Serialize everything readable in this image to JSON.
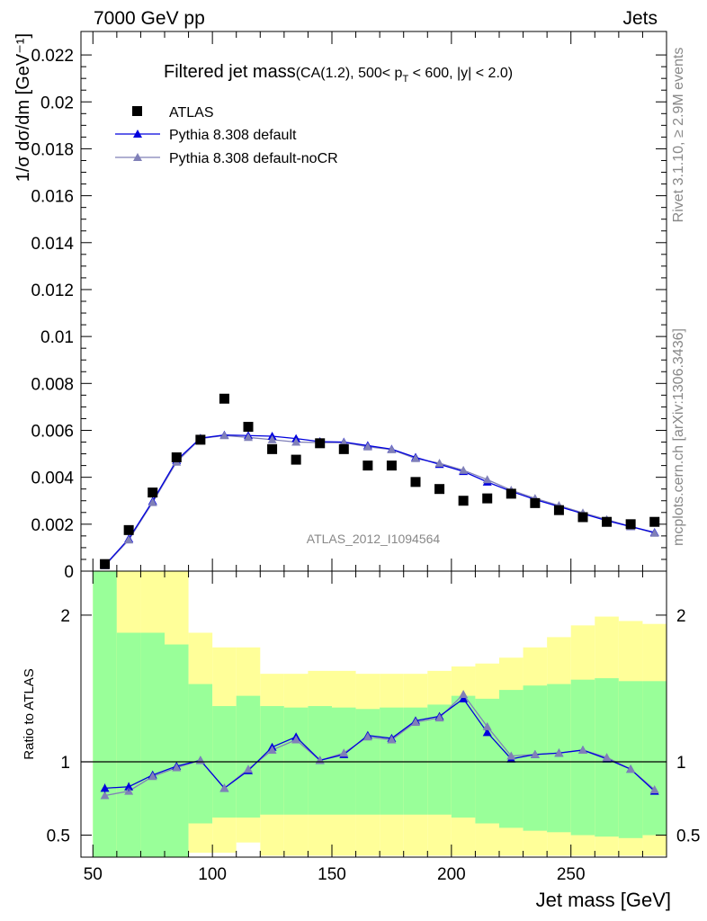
{
  "header": {
    "left": "7000 GeV pp",
    "right": "Jets"
  },
  "side_text": {
    "rivet": "Rivet 3.1.10, ≥ 2.9M events",
    "mcplots": "mcplots.cern.ch [arXiv:1306.3436]"
  },
  "colors": {
    "data": "#000000",
    "pythia_default": "#0000dd",
    "pythia_nocr": "#8080b8",
    "band_inner": "#99ff99",
    "band_outer": "#ffff99"
  },
  "chart_data": [
    {
      "type": "scatter",
      "title_main": "Filtered jet mass",
      "title_sub_1": "(CA(1.2), 500< p",
      "title_sub_sub": "T",
      "title_sub_2": " < 600, |y| < 2.0)",
      "ylabel": "1/σ dσ/dm [GeV⁻¹]",
      "watermark": "ATLAS_2012_I1094564",
      "xlim": [
        45,
        290
      ],
      "ylim": [
        0,
        0.023
      ],
      "y_ticks": [
        0,
        0.002,
        0.004,
        0.006,
        0.008,
        0.01,
        0.012,
        0.014,
        0.016,
        0.018,
        0.02,
        0.022
      ],
      "y_tick_labels": [
        "0",
        "0.002",
        "0.004",
        "0.006",
        "0.008",
        "0.01",
        "0.012",
        "0.014",
        "0.016",
        "0.018",
        "0.02",
        "0.022"
      ],
      "x": [
        55,
        65,
        75,
        85,
        95,
        105,
        115,
        125,
        135,
        145,
        155,
        165,
        175,
        185,
        195,
        205,
        215,
        225,
        235,
        245,
        255,
        265,
        275,
        285
      ],
      "series": [
        {
          "name": "ATLAS",
          "style": "square",
          "values": [
            0.0003,
            0.00175,
            0.00335,
            0.00485,
            0.0056,
            0.00735,
            0.00615,
            0.0052,
            0.00475,
            0.00545,
            0.0052,
            0.0045,
            0.0045,
            0.0038,
            0.0035,
            0.003,
            0.0031,
            0.0033,
            0.0029,
            0.0026,
            0.0023,
            0.0021,
            0.002,
            0.0021
          ]
        },
        {
          "name": "Pythia 8.308 default",
          "style": "triangle",
          "values": [
            0.00025,
            0.00138,
            0.00298,
            0.00472,
            0.00567,
            0.0058,
            0.00578,
            0.00575,
            0.00565,
            0.00552,
            0.0055,
            0.00535,
            0.0052,
            0.00485,
            0.00455,
            0.00425,
            0.0038,
            0.0034,
            0.00305,
            0.00275,
            0.00245,
            0.00215,
            0.0019,
            0.00165
          ]
        },
        {
          "name": "Pythia 8.308 default-noCR",
          "style": "triangle",
          "values": [
            0.00023,
            0.00133,
            0.00293,
            0.00465,
            0.00565,
            0.00578,
            0.0057,
            0.0056,
            0.0055,
            0.00548,
            0.00548,
            0.0053,
            0.00518,
            0.0048,
            0.0046,
            0.0043,
            0.0039,
            0.00345,
            0.0031,
            0.0028,
            0.00248,
            0.0022,
            0.0019,
            0.00162
          ]
        }
      ]
    },
    {
      "type": "line",
      "ylabel": "Ratio to ATLAS",
      "xlabel": "Jet mass [GeV]",
      "xlim": [
        45,
        290
      ],
      "ylim": [
        0.35,
        2.3
      ],
      "y_ticks": [
        0.5,
        1,
        2
      ],
      "y_tick_labels": [
        "0.5",
        "1",
        "2"
      ],
      "x_ticks": [
        50,
        100,
        150,
        200,
        250
      ],
      "x_tick_labels": [
        "50",
        "100",
        "150",
        "200",
        "250"
      ],
      "bin_edges": [
        50,
        60,
        70,
        80,
        90,
        100,
        110,
        120,
        130,
        140,
        150,
        160,
        170,
        180,
        190,
        200,
        210,
        220,
        230,
        240,
        250,
        260,
        270,
        280,
        290
      ],
      "band_inner": {
        "lo": [
          0.35,
          0.35,
          0.35,
          0.35,
          0.58,
          0.62,
          0.62,
          0.64,
          0.64,
          0.64,
          0.64,
          0.64,
          0.64,
          0.64,
          0.64,
          0.62,
          0.58,
          0.55,
          0.53,
          0.52,
          0.5,
          0.49,
          0.48,
          0.5
        ],
        "hi": [
          2.3,
          1.88,
          1.88,
          1.8,
          1.53,
          1.38,
          1.45,
          1.38,
          1.37,
          1.38,
          1.37,
          1.36,
          1.37,
          1.37,
          1.39,
          1.45,
          1.43,
          1.49,
          1.52,
          1.53,
          1.56,
          1.57,
          1.55,
          1.55
        ]
      },
      "band_outer": {
        "lo": [
          0.35,
          0.35,
          0.35,
          0.35,
          0.38,
          0.38,
          0.38,
          0.36,
          0.36,
          0.36,
          0.36,
          0.36,
          0.36,
          0.36,
          0.36,
          0.36,
          0.36,
          0.36,
          0.36,
          0.36,
          0.36,
          0.36,
          0.36,
          0.36
        ],
        "hi": [
          2.3,
          2.3,
          2.3,
          2.3,
          1.88,
          1.78,
          1.78,
          1.6,
          1.6,
          1.62,
          1.62,
          1.6,
          1.6,
          1.6,
          1.62,
          1.65,
          1.67,
          1.71,
          1.78,
          1.85,
          1.93,
          1.99,
          1.96,
          1.94
        ]
      },
      "outer_gap": {
        "x0": 110,
        "x1": 120,
        "lo": 0.35,
        "hi": 0.45
      },
      "reference": 1,
      "series": [
        {
          "name": "Pythia 8.308 default",
          "values": [
            0.82,
            0.83,
            0.91,
            0.97,
            1.01,
            0.82,
            0.94,
            1.1,
            1.17,
            1.01,
            1.05,
            1.18,
            1.16,
            1.28,
            1.31,
            1.43,
            1.2,
            1.02,
            1.05,
            1.06,
            1.08,
            1.02,
            0.95,
            0.8
          ]
        },
        {
          "name": "Pythia 8.308 default-noCR",
          "values": [
            0.77,
            0.8,
            0.9,
            0.96,
            1.01,
            0.82,
            0.95,
            1.08,
            1.15,
            1.01,
            1.06,
            1.17,
            1.15,
            1.27,
            1.3,
            1.46,
            1.24,
            1.04,
            1.05,
            1.06,
            1.08,
            1.03,
            0.95,
            0.81
          ]
        }
      ]
    }
  ]
}
